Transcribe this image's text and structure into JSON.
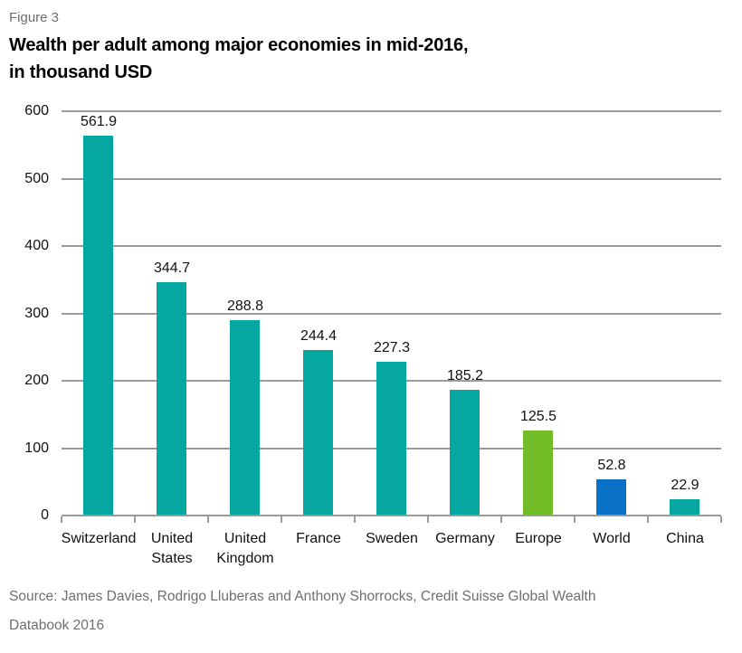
{
  "header": {
    "figure_label": "Figure 3",
    "title_line1": "Wealth per adult among major economies in mid-2016,",
    "title_line2": "in thousand USD"
  },
  "footer": {
    "source": "Source: James Davies, Rodrigo Lluberas and Anthony Shorrocks, Credit Suisse Global Wealth Databook 2016"
  },
  "colors": {
    "bar_teal": "#05a7a0",
    "bar_green": "#72bd27",
    "bar_blue": "#0a72c6",
    "gridline_gray": "#9b9b9b",
    "label_black": "#111111",
    "muted_gray": "#6e6e6e"
  },
  "chart_data": {
    "type": "bar",
    "title": "Wealth per adult among major economies in mid-2016, in thousand USD",
    "xlabel": "",
    "ylabel": "",
    "categories": [
      "Switzerland",
      "United States",
      "United Kingdom",
      "France",
      "Sweden",
      "Germany",
      "Europe",
      "World",
      "China"
    ],
    "category_lines": [
      [
        "Switzerland"
      ],
      [
        "United",
        "States"
      ],
      [
        "United",
        "Kingdom"
      ],
      [
        "France"
      ],
      [
        "Sweden"
      ],
      [
        "Germany"
      ],
      [
        "Europe"
      ],
      [
        "World"
      ],
      [
        "China"
      ]
    ],
    "values": [
      561.9,
      344.7,
      288.8,
      244.4,
      227.3,
      185.2,
      125.5,
      52.8,
      22.9
    ],
    "value_labels": [
      "561.9",
      "344.7",
      "288.8",
      "244.4",
      "227.3",
      "185.2",
      "125.5",
      "52.8",
      "22.9"
    ],
    "bar_colors": [
      "#05a7a0",
      "#05a7a0",
      "#05a7a0",
      "#05a7a0",
      "#05a7a0",
      "#05a7a0",
      "#72bd27",
      "#0a72c6",
      "#05a7a0"
    ],
    "y_ticks": [
      600,
      500,
      400,
      300,
      200,
      100,
      0
    ],
    "ylim": [
      0,
      600
    ],
    "grid": true,
    "legend": "none",
    "value_labels_shown": true
  }
}
